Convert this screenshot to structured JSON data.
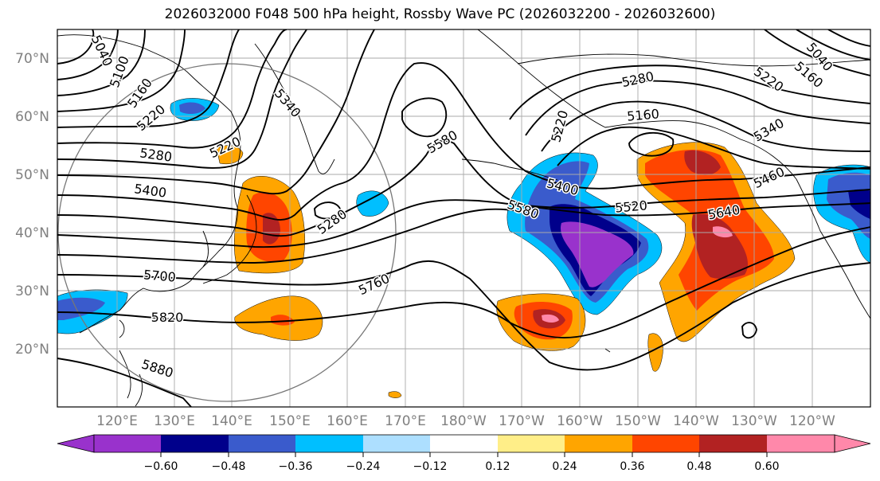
{
  "title": "2026032000 F048 500 hPa height, Rossby Wave PC (2026032200 - 2026032600)",
  "lat_labels": [
    "70°N",
    "60°N",
    "50°N",
    "40°N",
    "30°N",
    "20°N"
  ],
  "lon_labels": [
    "120°E",
    "130°E",
    "140°E",
    "150°E",
    "160°E",
    "170°E",
    "180°W",
    "170°W",
    "160°W",
    "150°W",
    "140°W",
    "130°W",
    "120°W"
  ],
  "contour_labels": [
    "5040",
    "5100",
    "5160",
    "5220",
    "5280",
    "5400",
    "5220",
    "5340",
    "5580",
    "5280",
    "5700",
    "5820",
    "5880",
    "5760",
    "5280",
    "5160",
    "5220",
    "5400",
    "5580",
    "5520",
    "5640",
    "5460",
    "5340",
    "5220",
    "5160",
    "5040"
  ],
  "colorbar": {
    "ticks": [
      "−0.60",
      "−0.48",
      "−0.36",
      "−0.24",
      "−0.12",
      "0.12",
      "0.24",
      "0.36",
      "0.48",
      "0.60"
    ],
    "colors": [
      "#9932CC",
      "#00008B",
      "#3A5BCC",
      "#00BFFF",
      "#ADDFFF",
      "#FFFFFF",
      "#FFEE88",
      "#FFA500",
      "#FF4500",
      "#B22222",
      "#FF88AA"
    ]
  }
}
